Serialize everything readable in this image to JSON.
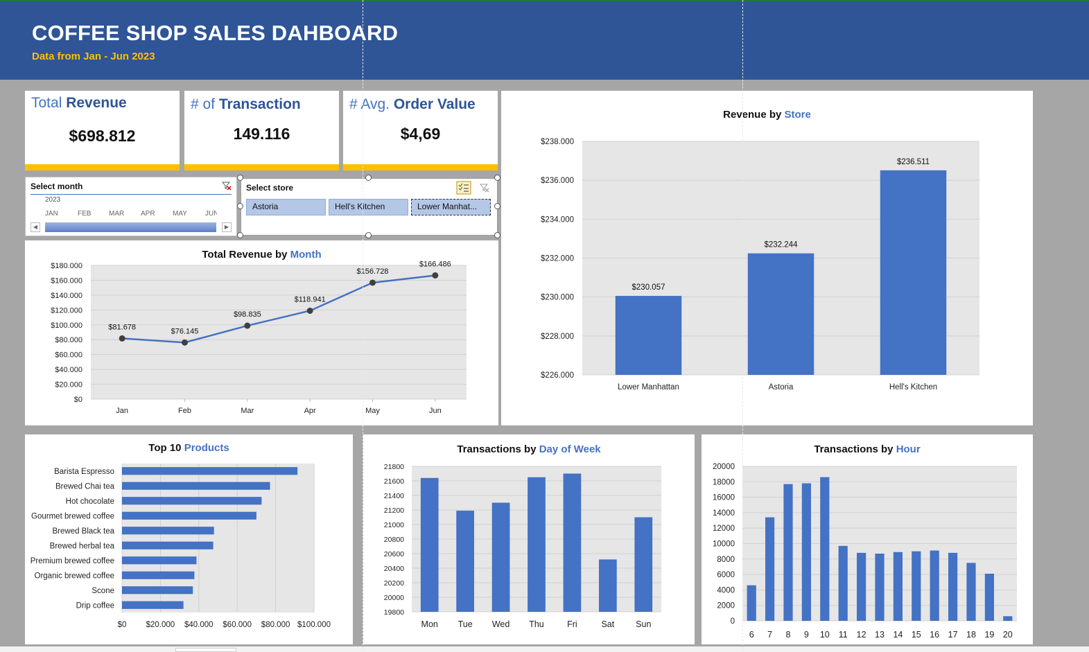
{
  "header": {
    "title": "COFFEE SHOP SALES DAHBOARD",
    "subtitle": "Data from Jan - Jun 2023"
  },
  "kpis": [
    {
      "label_pre": "Total ",
      "label_accent": "Revenue",
      "value": "$698.812"
    },
    {
      "label_pre": "# of ",
      "label_accent": "Transaction",
      "value": "149.116"
    },
    {
      "label_pre": "# Avg. ",
      "label_accent": "Order Value",
      "value": "$4,69"
    }
  ],
  "month_slicer": {
    "title": "Select month",
    "year": "2023",
    "months": [
      "JAN",
      "FEB",
      "MAR",
      "APR",
      "MAY",
      "JUN"
    ]
  },
  "store_slicer": {
    "title": "Select store",
    "options": [
      "Astoria",
      "Hell's Kitchen",
      "Lower Manhat..."
    ]
  },
  "colors": {
    "bar": "#4472c4",
    "header": "#2f5597",
    "accent": "#ffc000",
    "plot_bg": "#e7e6e6"
  },
  "chart_data": [
    {
      "id": "month",
      "type": "line",
      "title_pre": "Total Revenue by ",
      "title_accent": "Month",
      "categories": [
        "Jan",
        "Feb",
        "Mar",
        "Apr",
        "May",
        "Jun"
      ],
      "values": [
        81678,
        76145,
        98835,
        118941,
        156728,
        166486
      ],
      "data_labels": [
        "$81.678",
        "$76.145",
        "$98.835",
        "$118.941",
        "$156.728",
        "$166.486"
      ],
      "yticks": [
        "$0",
        "$20.000",
        "$40.000",
        "$60.000",
        "$80.000",
        "$100.000",
        "$120.000",
        "$140.000",
        "$160.000",
        "$180.000"
      ],
      "ylim": [
        0,
        180000
      ]
    },
    {
      "id": "store",
      "type": "bar",
      "title_pre": "Revenue by ",
      "title_accent": "Store",
      "categories": [
        "Lower Manhattan",
        "Astoria",
        "Hell's Kitchen"
      ],
      "values": [
        230057,
        232244,
        236511
      ],
      "data_labels": [
        "$230.057",
        "$232.244",
        "$236.511"
      ],
      "yticks": [
        "$226.000",
        "$228.000",
        "$230.000",
        "$232.000",
        "$234.000",
        "$236.000",
        "$238.000"
      ],
      "ylim": [
        226000,
        238000
      ]
    },
    {
      "id": "products",
      "type": "bar",
      "orientation": "horizontal",
      "title_pre": "Top 10 ",
      "title_accent": "Products",
      "categories": [
        "Barista Espresso",
        "Brewed Chai tea",
        "Hot chocolate",
        "Gourmet brewed coffee",
        "Brewed Black tea",
        "Brewed herbal tea",
        "Premium brewed coffee",
        "Organic brewed coffee",
        "Scone",
        "Drip coffee"
      ],
      "values": [
        91400,
        77100,
        72700,
        70000,
        47900,
        47500,
        38800,
        37700,
        36900,
        32000
      ],
      "xticks": [
        "$0",
        "$20.000",
        "$40.000",
        "$60.000",
        "$80.000",
        "$100.000"
      ],
      "xlim": [
        0,
        100000
      ]
    },
    {
      "id": "dow",
      "type": "bar",
      "title_pre": "Transactions by ",
      "title_accent": "Day of Week",
      "categories": [
        "Mon",
        "Tue",
        "Wed",
        "Thu",
        "Fri",
        "Sat",
        "Sun"
      ],
      "values": [
        21640,
        21190,
        21300,
        21650,
        21700,
        20520,
        21100
      ],
      "yticks": [
        "19800",
        "20000",
        "20200",
        "20400",
        "20600",
        "20800",
        "21000",
        "21200",
        "21400",
        "21600",
        "21800"
      ],
      "ylim": [
        19800,
        21800
      ]
    },
    {
      "id": "hour",
      "type": "bar",
      "title_pre": "Transactions by ",
      "title_accent": "Hour",
      "categories": [
        "6",
        "7",
        "8",
        "9",
        "10",
        "11",
        "12",
        "13",
        "14",
        "15",
        "16",
        "17",
        "18",
        "19",
        "20"
      ],
      "values": [
        4600,
        13400,
        17700,
        17800,
        18600,
        9700,
        8800,
        8700,
        8900,
        9000,
        9100,
        8800,
        7500,
        6100,
        600
      ],
      "yticks": [
        "0",
        "2000",
        "4000",
        "6000",
        "8000",
        "10000",
        "12000",
        "14000",
        "16000",
        "18000",
        "20000"
      ],
      "ylim": [
        0,
        20000
      ]
    }
  ]
}
